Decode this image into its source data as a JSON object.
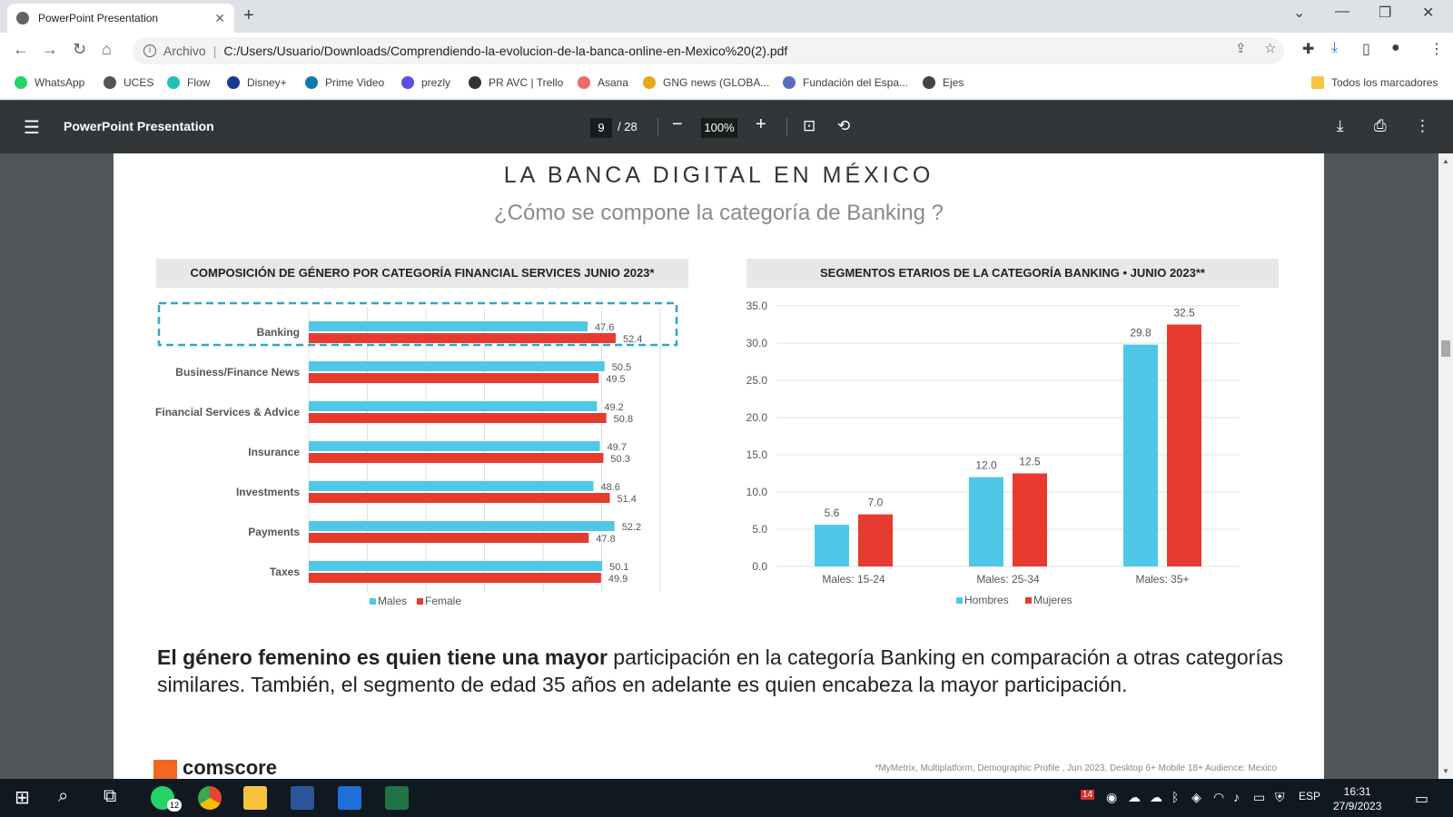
{
  "browser": {
    "tab_title": "PowerPoint Presentation",
    "new_tab": "+",
    "url_scheme": "Archivo",
    "url": "C:/Users/Usuario/Downloads/Comprendiendo-la-evolucion-de-la-banca-online-en-Mexico%20(2).pdf",
    "bookmarks": [
      "WhatsApp",
      "UCES",
      "Flow",
      "Disney+",
      "Prime Video",
      "prezly",
      "PR AVC | Trello",
      "Asana",
      "GNG news (GLOBA...",
      "Fundación del Espa...",
      "Ejes"
    ],
    "bookmark_colors": [
      "#25d366",
      "#555555",
      "#1fc2b0",
      "#1b3a8c",
      "#0f79af",
      "#5b4fe0",
      "#333333",
      "#f06a6a",
      "#e6a817",
      "#5b6bbf",
      "#444444"
    ],
    "all_bookmarks": "Todos los marcadores"
  },
  "pdf_viewer": {
    "title": "PowerPoint Presentation",
    "current_page": "9",
    "total_pages": "/ 28",
    "zoom": "100%"
  },
  "slide": {
    "title": "LA BANCA DIGITAL EN MÉXICO",
    "subtitle": "¿Cómo se compone la categoría de Banking ?",
    "left_panel_title": "COMPOSICIÓN DE GÉNERO POR CATEGORÍA FINANCIAL SERVICES JUNIO 2023*",
    "right_panel_title": "SEGMENTOS ETARIOS DE LA CATEGORÍA BANKING • JUNIO 2023**",
    "body_bold": "El género femenino es quien tiene una mayor",
    "body_rest": " participación en la categoría Banking en comparación a otras categorías similares. También, el segmento de edad 35 años en adelante es quien encabeza la mayor participación.",
    "footnote": "*MyMetrix, Multiplatform, Demographic Profile , Jun 2023, Desktop 6+ Mobile 18+ Audience: Mexico",
    "logo_text": "comscore"
  },
  "chart_data": [
    {
      "type": "bar",
      "orientation": "horizontal",
      "title": "COMPOSICIÓN DE GÉNERO POR CATEGORÍA FINANCIAL SERVICES JUNIO 2023*",
      "categories": [
        "Banking",
        "Business/Finance News",
        "Financial Services & Advice",
        "Insurance",
        "Investments",
        "Payments",
        "Taxes"
      ],
      "series": [
        {
          "name": "Males",
          "color": "#4fc8e8",
          "values": [
            47.6,
            50.5,
            49.2,
            49.7,
            48.6,
            52.2,
            50.1
          ]
        },
        {
          "name": "Female",
          "color": "#e63b2e",
          "values": [
            52.4,
            49.5,
            50.8,
            50.3,
            51.4,
            47.8,
            49.9
          ]
        }
      ],
      "legend": "bottom",
      "highlighted_category": "Banking",
      "xlim": [
        0,
        60
      ],
      "grid": true
    },
    {
      "type": "bar",
      "title": "SEGMENTOS ETARIOS DE LA CATEGORÍA BANKING • JUNIO 2023**",
      "categories": [
        "Males: 15-24",
        "Males: 25-34",
        "Males: 35+"
      ],
      "series": [
        {
          "name": "Hombres",
          "color": "#4fc8e8",
          "values": [
            5.6,
            12.0,
            29.8
          ]
        },
        {
          "name": "Mujeres",
          "color": "#e63b2e",
          "values": [
            7.0,
            12.5,
            32.5
          ]
        }
      ],
      "yticks": [
        "0.0",
        "5.0",
        "10.0",
        "15.0",
        "20.0",
        "25.0",
        "30.0",
        "35.0"
      ],
      "ylim": [
        0,
        35
      ],
      "legend": "bottom",
      "grid": true
    }
  ],
  "taskbar": {
    "whatsapp_badge": "12",
    "language": "ESP",
    "time": "16:31",
    "date": "27/9/2023",
    "tray_badge": "14"
  }
}
